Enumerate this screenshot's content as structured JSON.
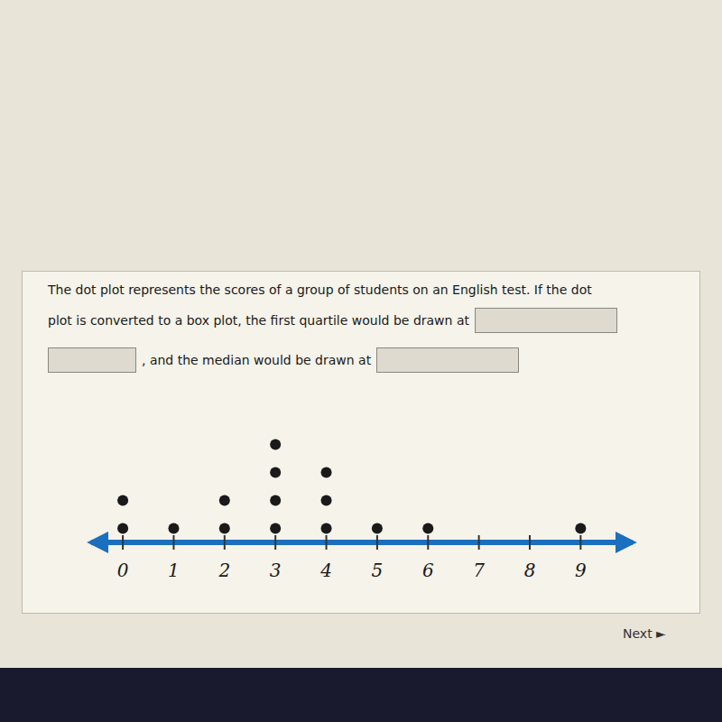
{
  "chart_data": {
    "type": "dot",
    "x": [
      0,
      1,
      2,
      3,
      4,
      5,
      6,
      7,
      8,
      9
    ],
    "values": [
      2,
      1,
      2,
      4,
      3,
      1,
      1,
      0,
      0,
      1
    ],
    "xlim": [
      -0.8,
      10.2
    ],
    "xticks": [
      0,
      1,
      2,
      3,
      4,
      5,
      6,
      7,
      8,
      9
    ],
    "ylim": [
      0,
      5
    ],
    "tick_labels": "x",
    "color": "#1a1a1a",
    "annotations": [
      "The dot plot represents the scores of a group of students on an English test. If the dot",
      "plot is converted to a box plot, the first quartile would be drawn at",
      ", and the median would be drawn at",
      "Next ►"
    ]
  }
}
